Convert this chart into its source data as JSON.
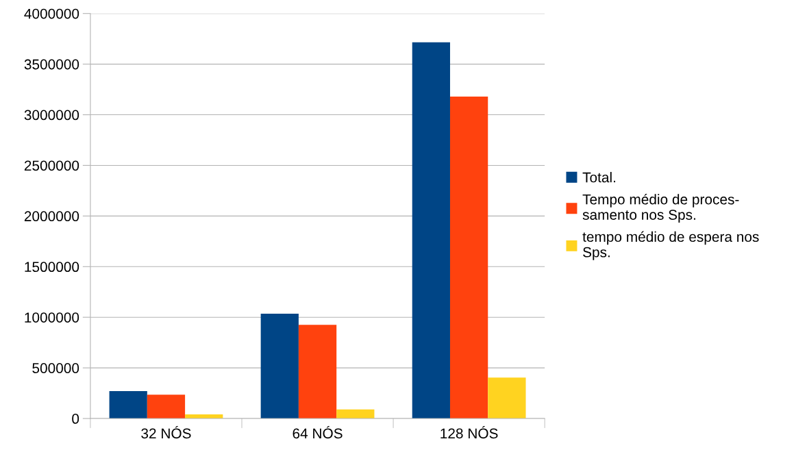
{
  "chart_data": {
    "type": "bar",
    "categories": [
      "32 NÓS",
      "64 NÓS",
      "128 NÓS"
    ],
    "series": [
      {
        "name": "Total.",
        "color": "#004586",
        "values": [
          270000,
          1035000,
          3715000
        ]
      },
      {
        "name": "Tempo médio de proces-\nsamento nos Sps.",
        "color": "#ff420e",
        "values": [
          235000,
          925000,
          3180000
        ]
      },
      {
        "name": "tempo médio de espera nos\nSps.",
        "color": "#ffd320",
        "values": [
          40000,
          90000,
          405000
        ]
      }
    ],
    "ylim": [
      0,
      4000000
    ],
    "yticks": [
      0,
      500000,
      1000000,
      1500000,
      2000000,
      2500000,
      3000000,
      3500000,
      4000000
    ],
    "grid": "y",
    "legend": "right"
  }
}
